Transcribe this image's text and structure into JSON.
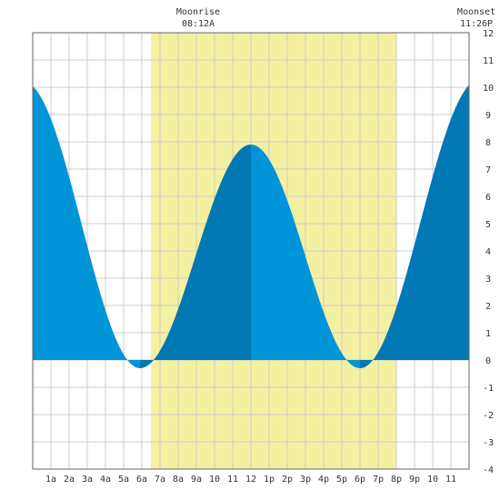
{
  "header": {
    "moonrise_label": "Moonrise",
    "moonrise_time": "08:12A",
    "moonset_label": "Moonset",
    "moonset_time": "11:26P"
  },
  "colors": {
    "daylight": "#f3f0a0",
    "rising_tide": "#0078b4",
    "falling_tide": "#0094d9",
    "grid": "#cccccc",
    "border": "#666666",
    "background": "#ffffff"
  },
  "chart_data": {
    "type": "area",
    "xlim": [
      0,
      24
    ],
    "ylim": [
      -4,
      12
    ],
    "y_ticks": [
      "-4",
      "-3",
      "-2",
      "-1",
      "0",
      "1",
      "2",
      "3",
      "4",
      "5",
      "6",
      "7",
      "8",
      "9",
      "10",
      "11",
      "12"
    ],
    "x_ticks": [
      {
        "hour": 1,
        "label": "1a"
      },
      {
        "hour": 2,
        "label": "2a"
      },
      {
        "hour": 3,
        "label": "3a"
      },
      {
        "hour": 4,
        "label": "4a"
      },
      {
        "hour": 5,
        "label": "5a"
      },
      {
        "hour": 6,
        "label": "6a"
      },
      {
        "hour": 7,
        "label": "7a"
      },
      {
        "hour": 8,
        "label": "8a"
      },
      {
        "hour": 9,
        "label": "9a"
      },
      {
        "hour": 10,
        "label": "10"
      },
      {
        "hour": 11,
        "label": "11"
      },
      {
        "hour": 12,
        "label": "12"
      },
      {
        "hour": 13,
        "label": "1p"
      },
      {
        "hour": 14,
        "label": "2p"
      },
      {
        "hour": 15,
        "label": "3p"
      },
      {
        "hour": 16,
        "label": "4p"
      },
      {
        "hour": 17,
        "label": "5p"
      },
      {
        "hour": 18,
        "label": "6p"
      },
      {
        "hour": 19,
        "label": "7p"
      },
      {
        "hour": 20,
        "label": "8p"
      },
      {
        "hour": 21,
        "label": "9p"
      },
      {
        "hour": 22,
        "label": "10"
      },
      {
        "hour": 23,
        "label": "11"
      }
    ],
    "daylight": {
      "start": 6.5,
      "end": 20.0
    },
    "moonrise_hour": 8.2,
    "moonset_hour": 23.43,
    "tide_extremes": [
      {
        "hour": -0.5,
        "height": 10.2
      },
      {
        "hour": 5.9,
        "height": -0.3
      },
      {
        "hour": 12.0,
        "height": 7.9
      },
      {
        "hour": 18.0,
        "height": -0.3
      },
      {
        "hour": 24.6,
        "height": 10.3
      }
    ]
  }
}
